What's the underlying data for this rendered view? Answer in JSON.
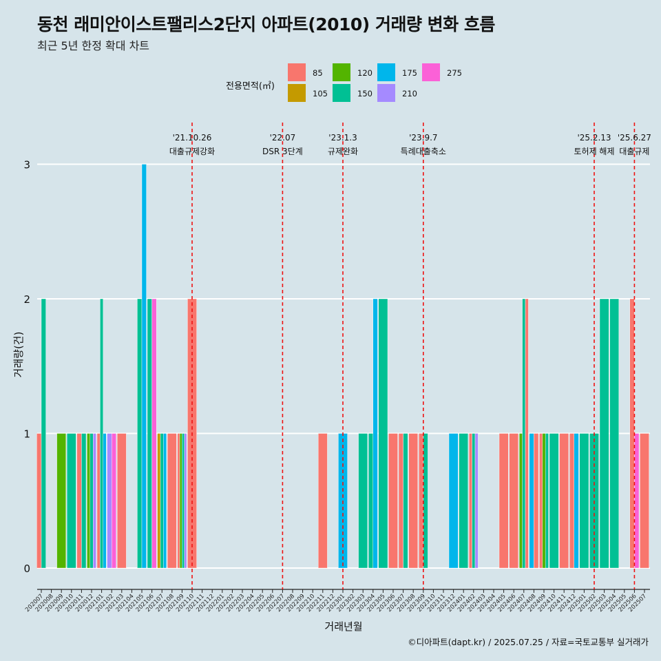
{
  "title": "동천 래미안이스트팰리스2단지 아파트(2010) 거래량 변화 흐름",
  "subtitle": "최근 5년 한정 확대 차트",
  "caption": "©디아파트(dapt.kr) / 2025.07.25 / 자료=국토교통부 실거래가",
  "legend": {
    "title": "전용면적(㎡)",
    "items": [
      {
        "label": "85",
        "color": "#F8766D"
      },
      {
        "label": "105",
        "color": "#C49A00"
      },
      {
        "label": "120",
        "color": "#53B400"
      },
      {
        "label": "150",
        "color": "#00C094"
      },
      {
        "label": "175",
        "color": "#00B6EB"
      },
      {
        "label": "210",
        "color": "#A58AFF"
      },
      {
        "label": "275",
        "color": "#FB61D7"
      }
    ]
  },
  "chart_data": {
    "type": "bar",
    "stacked": false,
    "xlabel": "거래년월",
    "ylabel": "거래량(건)",
    "ylim": [
      0,
      3
    ],
    "yticks": [
      0,
      1,
      2,
      3
    ],
    "grid": true,
    "legend_position": "top",
    "categories": [
      "202007",
      "202008",
      "202009",
      "202010",
      "202011",
      "202012",
      "202101",
      "202102",
      "202103",
      "202104",
      "202105",
      "202106",
      "202107",
      "202108",
      "202109",
      "202110",
      "202111",
      "202112",
      "202201",
      "202202",
      "202203",
      "202204",
      "202205",
      "202206",
      "202207",
      "202208",
      "202209",
      "202210",
      "202211",
      "202212",
      "202301",
      "202302",
      "202303",
      "202304",
      "202305",
      "202306",
      "202307",
      "202308",
      "202309",
      "202310",
      "202311",
      "202312",
      "202401",
      "202402",
      "202403",
      "202404",
      "202405",
      "202406",
      "202407",
      "202408",
      "202409",
      "202410",
      "202411",
      "202412",
      "202501",
      "202502",
      "202503",
      "202504",
      "202505",
      "202506",
      "202507"
    ],
    "bars": [
      {
        "month": "202007",
        "groups": [
          {
            "area": "85",
            "value": 1
          },
          {
            "area": "150",
            "value": 2
          }
        ]
      },
      {
        "month": "202009",
        "groups": [
          {
            "area": "120",
            "value": 1
          }
        ]
      },
      {
        "month": "202010",
        "groups": [
          {
            "area": "150",
            "value": 1
          }
        ]
      },
      {
        "month": "202011",
        "groups": [
          {
            "area": "85",
            "value": 1
          },
          {
            "area": "150",
            "value": 1
          }
        ]
      },
      {
        "month": "202012",
        "groups": [
          {
            "area": "120",
            "value": 1
          },
          {
            "area": "150",
            "value": 1
          },
          {
            "area": "210",
            "value": 1
          }
        ]
      },
      {
        "month": "202101",
        "groups": [
          {
            "area": "85",
            "value": 1
          },
          {
            "area": "150",
            "value": 2
          },
          {
            "area": "175",
            "value": 1
          }
        ]
      },
      {
        "month": "202102",
        "groups": [
          {
            "area": "210",
            "value": 1
          },
          {
            "area": "275",
            "value": 1
          }
        ]
      },
      {
        "month": "202103",
        "groups": [
          {
            "area": "85",
            "value": 1
          }
        ]
      },
      {
        "month": "202105",
        "groups": [
          {
            "area": "150",
            "value": 2
          },
          {
            "area": "175",
            "value": 3
          }
        ]
      },
      {
        "month": "202106",
        "groups": [
          {
            "area": "150",
            "value": 2
          },
          {
            "area": "275",
            "value": 2
          }
        ]
      },
      {
        "month": "202107",
        "groups": [
          {
            "area": "105",
            "value": 1
          },
          {
            "area": "150",
            "value": 1
          },
          {
            "area": "175",
            "value": 1
          }
        ]
      },
      {
        "month": "202108",
        "groups": [
          {
            "area": "85",
            "value": 1
          }
        ]
      },
      {
        "month": "202109",
        "groups": [
          {
            "area": "85",
            "value": 1
          },
          {
            "area": "120",
            "value": 1
          },
          {
            "area": "150",
            "value": 1
          },
          {
            "area": "210",
            "value": 1
          }
        ]
      },
      {
        "month": "202110",
        "groups": [
          {
            "area": "85",
            "value": 2
          }
        ]
      },
      {
        "month": "202211",
        "groups": [
          {
            "area": "85",
            "value": 1
          }
        ]
      },
      {
        "month": "202301",
        "groups": [
          {
            "area": "175",
            "value": 1
          }
        ]
      },
      {
        "month": "202303",
        "groups": [
          {
            "area": "150",
            "value": 1
          }
        ]
      },
      {
        "month": "202304",
        "groups": [
          {
            "area": "150",
            "value": 1
          },
          {
            "area": "175",
            "value": 2
          }
        ]
      },
      {
        "month": "202305",
        "groups": [
          {
            "area": "150",
            "value": 2
          }
        ]
      },
      {
        "month": "202306",
        "groups": [
          {
            "area": "85",
            "value": 1
          }
        ]
      },
      {
        "month": "202307",
        "groups": [
          {
            "area": "85",
            "value": 1
          },
          {
            "area": "150",
            "value": 1
          }
        ]
      },
      {
        "month": "202308",
        "groups": [
          {
            "area": "85",
            "value": 1
          }
        ]
      },
      {
        "month": "202309",
        "groups": [
          {
            "area": "85",
            "value": 1
          },
          {
            "area": "150",
            "value": 1
          }
        ]
      },
      {
        "month": "202312",
        "groups": [
          {
            "area": "175",
            "value": 1
          }
        ]
      },
      {
        "month": "202401",
        "groups": [
          {
            "area": "150",
            "value": 1
          }
        ]
      },
      {
        "month": "202402",
        "groups": [
          {
            "area": "85",
            "value": 1
          },
          {
            "area": "150",
            "value": 1
          },
          {
            "area": "210",
            "value": 1
          }
        ]
      },
      {
        "month": "202405",
        "groups": [
          {
            "area": "85",
            "value": 1
          }
        ]
      },
      {
        "month": "202406",
        "groups": [
          {
            "area": "85",
            "value": 1
          }
        ]
      },
      {
        "month": "202407",
        "groups": [
          {
            "area": "120",
            "value": 1
          },
          {
            "area": "150",
            "value": 2
          },
          {
            "area": "85",
            "value": 2
          }
        ]
      },
      {
        "month": "202408",
        "groups": [
          {
            "area": "175",
            "value": 1
          },
          {
            "area": "85",
            "value": 1
          }
        ]
      },
      {
        "month": "202409",
        "groups": [
          {
            "area": "85",
            "value": 1
          },
          {
            "area": "120",
            "value": 1
          },
          {
            "area": "150",
            "value": 1
          }
        ]
      },
      {
        "month": "202410",
        "groups": [
          {
            "area": "150",
            "value": 1
          }
        ]
      },
      {
        "month": "202411",
        "groups": [
          {
            "area": "85",
            "value": 1
          }
        ]
      },
      {
        "month": "202412",
        "groups": [
          {
            "area": "85",
            "value": 1
          },
          {
            "area": "175",
            "value": 1
          }
        ]
      },
      {
        "month": "202501",
        "groups": [
          {
            "area": "150",
            "value": 1
          }
        ]
      },
      {
        "month": "202502",
        "groups": [
          {
            "area": "150",
            "value": 1
          }
        ]
      },
      {
        "month": "202503",
        "groups": [
          {
            "area": "150",
            "value": 2
          }
        ]
      },
      {
        "month": "202504",
        "groups": [
          {
            "area": "150",
            "value": 2
          }
        ]
      },
      {
        "month": "202506",
        "groups": [
          {
            "area": "85",
            "value": 2
          },
          {
            "area": "275",
            "value": 1
          }
        ]
      },
      {
        "month": "202507",
        "groups": [
          {
            "area": "85",
            "value": 1
          }
        ]
      }
    ],
    "events": [
      {
        "date_label": "'21.10.26",
        "text": "대출규제강화",
        "month": "202110",
        "offset": 0.0
      },
      {
        "date_label": "'22.07",
        "text": "DSR 3단계",
        "month": "202207",
        "offset": 0.0
      },
      {
        "date_label": "'23.1.3",
        "text": "규제완화",
        "month": "202301",
        "offset": 0.0
      },
      {
        "date_label": "'23.9.7",
        "text": "특례대출축소",
        "month": "202309",
        "offset": 0.0
      },
      {
        "date_label": "'25.2.13",
        "text": "토허제 해제",
        "month": "202502",
        "offset": 0.0
      },
      {
        "date_label": "'25.6.27",
        "text": "대출규제",
        "month": "202506",
        "offset": 0.0
      }
    ]
  }
}
